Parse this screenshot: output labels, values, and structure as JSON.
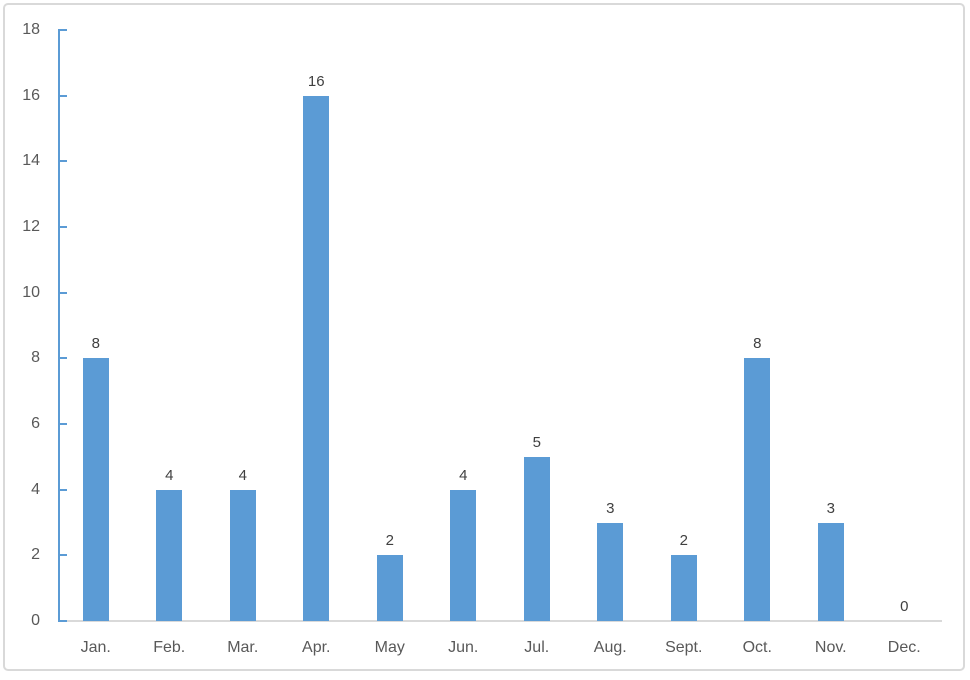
{
  "chart_data": {
    "type": "bar",
    "categories": [
      "Jan.",
      "Feb.",
      "Mar.",
      "Apr.",
      "May",
      "Jun.",
      "Jul.",
      "Aug.",
      "Sept.",
      "Oct.",
      "Nov.",
      "Dec."
    ],
    "values": [
      8,
      4,
      4,
      16,
      2,
      4,
      5,
      3,
      2,
      8,
      3,
      0
    ],
    "title": "",
    "xlabel": "",
    "ylabel": "",
    "ylim": [
      0,
      18
    ],
    "yticks": [
      0,
      2,
      4,
      6,
      8,
      10,
      12,
      14,
      16,
      18
    ],
    "data_labels": true,
    "legend": "none",
    "grid": false,
    "colors": {
      "bar": "#5B9BD5",
      "y_axis_line": "#5B9BD5",
      "x_axis_line": "#D9D9D9",
      "axis_text": "#595959",
      "data_label_text": "#404040",
      "frame_border": "#D9D9D9",
      "background": "#FFFFFF"
    }
  }
}
